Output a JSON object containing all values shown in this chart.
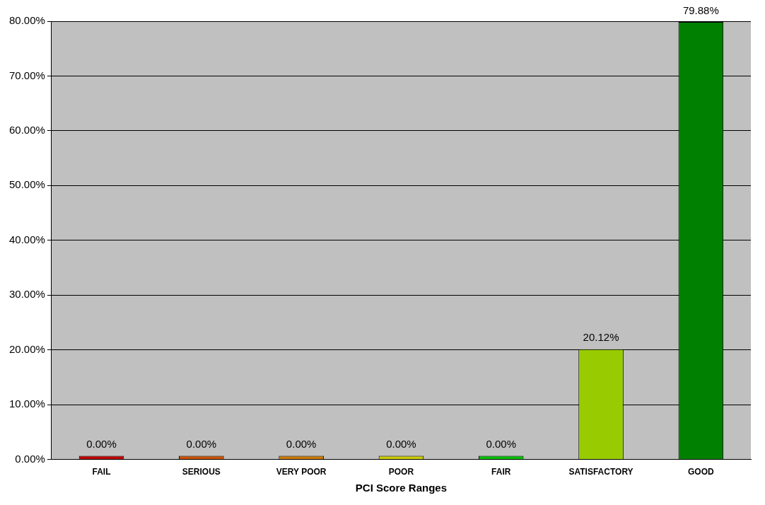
{
  "chart_data": {
    "type": "bar",
    "xlabel": "PCI Score Ranges",
    "categories": [
      "FAIL",
      "SERIOUS",
      "VERY POOR",
      "POOR",
      "FAIR",
      "SATISFACTORY",
      "GOOD"
    ],
    "values": [
      0,
      0,
      0,
      0,
      0,
      20.12,
      79.88
    ],
    "colors": [
      "#c00000",
      "#cc5200",
      "#cc7a00",
      "#cccc00",
      "#00c000",
      "#99cc00",
      "#008000"
    ],
    "value_labels": [
      "0.00%",
      "0.00%",
      "0.00%",
      "0.00%",
      "0.00%",
      "20.12%",
      "79.88%"
    ],
    "ylim": [
      0,
      80
    ],
    "yticks": [
      {
        "value": 0,
        "label": "0.00%"
      },
      {
        "value": 10,
        "label": "10.00%"
      },
      {
        "value": 20,
        "label": "20.00%"
      },
      {
        "value": 30,
        "label": "30.00%"
      },
      {
        "value": 40,
        "label": "40.00%"
      },
      {
        "value": 50,
        "label": "50.00%"
      },
      {
        "value": 60,
        "label": "60.00%"
      },
      {
        "value": 70,
        "label": "70.00%"
      },
      {
        "value": 80,
        "label": "80.00%"
      }
    ],
    "grid": "y",
    "legend": false
  }
}
